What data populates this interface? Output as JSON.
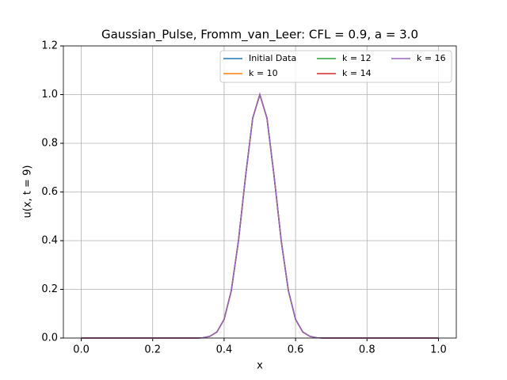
{
  "chart_data": {
    "type": "line",
    "title": "Gaussian_Pulse, Fromm_van_Leer: CFL = 0.9, a = 3.0",
    "xlabel": "x",
    "ylabel": "u(x, t = 9)",
    "x": [
      0,
      0.02,
      0.04,
      0.06,
      0.08,
      0.1,
      0.12,
      0.14,
      0.16,
      0.18,
      0.2,
      0.22,
      0.24,
      0.26,
      0.28,
      0.3,
      0.32,
      0.34,
      0.36,
      0.38,
      0.4,
      0.42,
      0.44,
      0.46,
      0.48,
      0.5,
      0.52,
      0.54,
      0.56,
      0.58,
      0.6,
      0.62,
      0.64,
      0.66,
      0.68,
      0.7,
      0.72,
      0.74,
      0.76,
      0.78,
      0.8,
      0.82,
      0.84,
      0.86,
      0.88,
      0.9,
      0.92,
      0.94,
      0.96,
      0.98,
      1
    ],
    "series": [
      {
        "name": "Initial Data",
        "color": "#1f77b4",
        "values": [
          0,
          0,
          0,
          0,
          0,
          0,
          0,
          0,
          0,
          0,
          0,
          0,
          0,
          0,
          0,
          0,
          0,
          0.001,
          0.007,
          0.025,
          0.077,
          0.194,
          0.398,
          0.664,
          0.903,
          1,
          0.903,
          0.664,
          0.398,
          0.194,
          0.077,
          0.025,
          0.007,
          0.001,
          0,
          0,
          0,
          0,
          0,
          0,
          0,
          0,
          0,
          0,
          0,
          0,
          0,
          0,
          0,
          0,
          0
        ]
      },
      {
        "name": "k = 10",
        "color": "#ff7f0e",
        "values": [
          0,
          0,
          0,
          0,
          0,
          0,
          0,
          0,
          0,
          0,
          0,
          0,
          0,
          0,
          0,
          0,
          0,
          0.001,
          0.007,
          0.025,
          0.077,
          0.194,
          0.398,
          0.664,
          0.903,
          1,
          0.903,
          0.664,
          0.398,
          0.194,
          0.077,
          0.025,
          0.007,
          0.001,
          0,
          0,
          0,
          0,
          0,
          0,
          0,
          0,
          0,
          0,
          0,
          0,
          0,
          0,
          0,
          0,
          0
        ]
      },
      {
        "name": "k = 12",
        "color": "#2ca02c",
        "values": [
          0,
          0,
          0,
          0,
          0,
          0,
          0,
          0,
          0,
          0,
          0,
          0,
          0,
          0,
          0,
          0,
          0,
          0.001,
          0.007,
          0.025,
          0.077,
          0.194,
          0.398,
          0.664,
          0.903,
          1,
          0.903,
          0.664,
          0.398,
          0.194,
          0.077,
          0.025,
          0.007,
          0.001,
          0,
          0,
          0,
          0,
          0,
          0,
          0,
          0,
          0,
          0,
          0,
          0,
          0,
          0,
          0,
          0,
          0
        ]
      },
      {
        "name": "k = 14",
        "color": "#d62728",
        "values": [
          0,
          0,
          0,
          0,
          0,
          0,
          0,
          0,
          0,
          0,
          0,
          0,
          0,
          0,
          0,
          0,
          0,
          0.001,
          0.007,
          0.025,
          0.077,
          0.194,
          0.398,
          0.664,
          0.903,
          1,
          0.903,
          0.664,
          0.398,
          0.194,
          0.077,
          0.025,
          0.007,
          0.001,
          0,
          0,
          0,
          0,
          0,
          0,
          0,
          0,
          0,
          0,
          0,
          0,
          0,
          0,
          0,
          0,
          0
        ]
      },
      {
        "name": "k = 16",
        "color": "#9467bd",
        "values": [
          0,
          0,
          0,
          0,
          0,
          0,
          0,
          0,
          0,
          0,
          0,
          0,
          0,
          0,
          0,
          0,
          0,
          0.001,
          0.007,
          0.025,
          0.077,
          0.194,
          0.398,
          0.664,
          0.903,
          1,
          0.903,
          0.664,
          0.398,
          0.194,
          0.077,
          0.025,
          0.007,
          0.001,
          0,
          0,
          0,
          0,
          0,
          0,
          0,
          0,
          0,
          0,
          0,
          0,
          0,
          0,
          0,
          0,
          0
        ]
      }
    ],
    "xlim": [
      -0.05,
      1.05
    ],
    "xticks": [
      {
        "value": 0,
        "label": "0.0"
      },
      0.2,
      0.4,
      0.6,
      0.8,
      {
        "value": 1,
        "label": "1.0"
      }
    ],
    "ylim": [
      0,
      1.2
    ],
    "yticks": [
      {
        "value": 0,
        "label": "0.0"
      },
      0.2,
      0.4,
      0.6,
      0.8,
      {
        "value": 1,
        "label": "1.0"
      },
      1.2
    ],
    "grid": true,
    "legend": "upper right"
  }
}
